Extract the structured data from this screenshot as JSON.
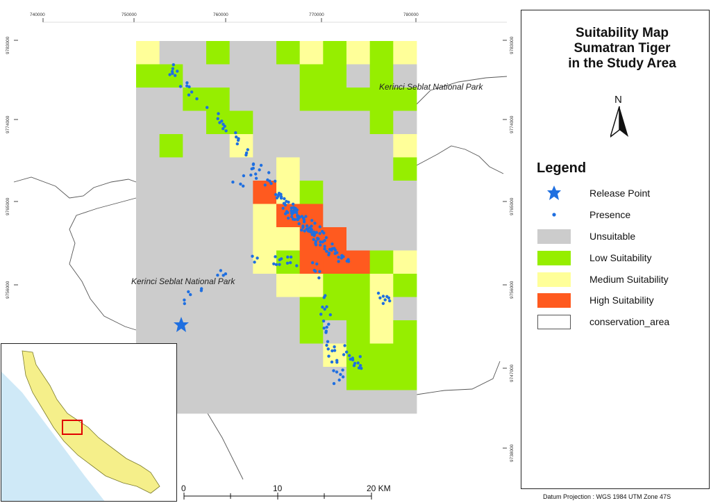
{
  "title": {
    "line1": "Suitability Map",
    "line2": "Sumatran Tiger",
    "line3": "in the Study Area"
  },
  "north_arrow": {
    "label": "N"
  },
  "legend": {
    "heading": "Legend",
    "items": [
      {
        "label": "Release Point",
        "symbol": "star-icon",
        "color": "#1f6fe0"
      },
      {
        "label": "Presence",
        "symbol": "dot",
        "color": "#1f6fe0"
      },
      {
        "label": "Unsuitable",
        "symbol": "swatch",
        "color": "#cccccc"
      },
      {
        "label": "Low Suitability",
        "symbol": "swatch",
        "color": "#96ee00"
      },
      {
        "label": "Medium Suitability",
        "symbol": "swatch",
        "color": "#ffff99"
      },
      {
        "label": "High Suitability",
        "symbol": "swatch",
        "color": "#ff5a1f"
      },
      {
        "label": "conservation_area",
        "symbol": "swatch-outline",
        "color": "#ffffff"
      }
    ]
  },
  "park_labels": {
    "northeast": "Kerinci Seblat National Park",
    "southwest": "Kerinci Seblat National Park"
  },
  "grid": {
    "x_ticks": [
      "740000",
      "750000",
      "760000",
      "770000",
      "780000"
    ],
    "y_ticks": [
      "9783000",
      "9774000",
      "9765000",
      "9756000",
      "9747000",
      "9738000"
    ]
  },
  "scale_bar": {
    "labels": [
      "0",
      "10",
      "20 KM"
    ]
  },
  "datum": "Datum Projection : WGS 1984 UTM Zone 47S",
  "suitability_grid": {
    "columns": 12,
    "rows": 16,
    "codes": "0: Unsuitable, 1: Low, 2: Medium, 3: High",
    "cells": [
      [
        2,
        0,
        0,
        1,
        0,
        0,
        1,
        2,
        1,
        2,
        1,
        2
      ],
      [
        1,
        1,
        0,
        0,
        0,
        0,
        0,
        1,
        1,
        0,
        1,
        0
      ],
      [
        0,
        0,
        1,
        1,
        0,
        0,
        0,
        1,
        1,
        1,
        1,
        1
      ],
      [
        0,
        0,
        0,
        1,
        1,
        0,
        0,
        0,
        0,
        0,
        1,
        0
      ],
      [
        0,
        1,
        0,
        0,
        2,
        0,
        0,
        0,
        0,
        0,
        0,
        2
      ],
      [
        0,
        0,
        0,
        0,
        0,
        0,
        2,
        0,
        0,
        0,
        0,
        1
      ],
      [
        0,
        0,
        0,
        0,
        0,
        3,
        2,
        1,
        0,
        0,
        0,
        0
      ],
      [
        0,
        0,
        0,
        0,
        0,
        2,
        3,
        3,
        0,
        0,
        0,
        0
      ],
      [
        0,
        0,
        0,
        0,
        0,
        2,
        2,
        3,
        3,
        0,
        0,
        0
      ],
      [
        0,
        0,
        0,
        0,
        0,
        2,
        1,
        3,
        3,
        3,
        1,
        2
      ],
      [
        0,
        0,
        0,
        0,
        0,
        0,
        2,
        2,
        1,
        1,
        2,
        1
      ],
      [
        0,
        0,
        0,
        0,
        0,
        0,
        0,
        1,
        1,
        1,
        2,
        0
      ],
      [
        0,
        0,
        0,
        0,
        0,
        0,
        0,
        1,
        0,
        1,
        2,
        1
      ],
      [
        0,
        0,
        0,
        0,
        0,
        0,
        0,
        0,
        2,
        1,
        1,
        1
      ],
      [
        0,
        0,
        0,
        0,
        0,
        0,
        0,
        0,
        0,
        1,
        1,
        1
      ],
      [
        0,
        0,
        0,
        0,
        0,
        0,
        0,
        0,
        0,
        0,
        0,
        0
      ]
    ]
  }
}
